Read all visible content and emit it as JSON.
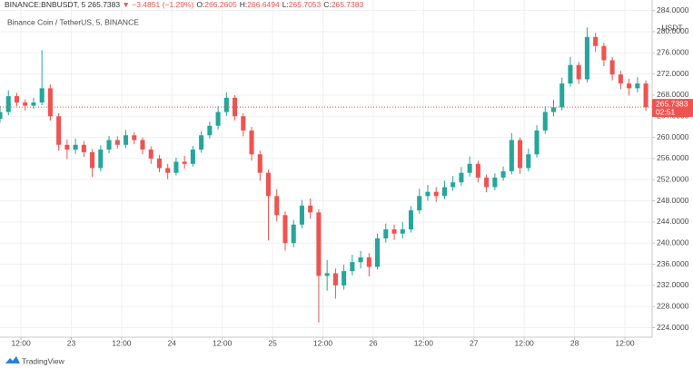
{
  "chart_data": {
    "type": "candlestick",
    "symbol": "BINANCE:BNBUSDT, 5",
    "change": "▼ −3.4851 (−1.29%)",
    "ohlc": [
      {
        "label": "O:",
        "value": "266.2605"
      },
      {
        "label": "H:",
        "value": "266.6494"
      },
      {
        "label": "L:",
        "value": "265.7053"
      },
      {
        "label": "C:",
        "value": "265.7383"
      }
    ],
    "subtitle": "Binance Coin / TetherUS, 5, BINANCE",
    "y_unit": "USDT",
    "last_price": 265.7383,
    "countdown": "02:51",
    "brand": "TradingView",
    "up_color": "#26a69a",
    "down_color": "#ef5350",
    "grid": true,
    "x": [
      7,
      9,
      11,
      13,
      15,
      17,
      19,
      21,
      23,
      25,
      27,
      29,
      31,
      33,
      35,
      37,
      39,
      41,
      43,
      45,
      47,
      49,
      51,
      53,
      55,
      57,
      59,
      61,
      63,
      65,
      67,
      69,
      71,
      73,
      75,
      77,
      79,
      81,
      83,
      85,
      87,
      89,
      91,
      93,
      95,
      97,
      99,
      101,
      103,
      105,
      107,
      109,
      111,
      113,
      115,
      117,
      119,
      121,
      123,
      125,
      127,
      129,
      131,
      133,
      135,
      137,
      139,
      141,
      143,
      145,
      147,
      149,
      151,
      153,
      155,
      157,
      159,
      161
    ],
    "open": [
      263.5,
      264.8,
      267.8,
      266.6,
      266,
      266.6,
      269.3,
      264,
      258.6,
      257.7,
      258.6,
      257.2,
      254.2,
      257.7,
      259.5,
      258.6,
      260.4,
      259.5,
      257.7,
      256,
      254.2,
      253.3,
      255.4,
      255,
      257.7,
      260.4,
      262.2,
      264.8,
      267.5,
      264,
      261.3,
      256.8,
      253.3,
      248.9,
      245.3,
      240,
      243.5,
      247.1,
      245.8,
      233.8,
      234.3,
      232,
      234.7,
      236.4,
      237.3,
      235.5,
      240.9,
      242.6,
      241.8,
      242.6,
      246.2,
      248.9,
      249.7,
      248.9,
      250.6,
      251.5,
      253.3,
      255,
      252.4,
      250.6,
      252.4,
      253.6,
      259.5,
      254.2,
      256.8,
      261.3,
      264.8,
      265.7,
      270.2,
      273.7,
      271,
      279,
      277.3,
      274.6,
      271.9,
      270.2,
      269.3,
      270.2
    ],
    "high": [
      266,
      268.9,
      268.4,
      267.2,
      267.5,
      276.5,
      270,
      264.6,
      259.6,
      259.8,
      259.3,
      257.8,
      258.5,
      260.3,
      260.2,
      261.4,
      261,
      260,
      258.3,
      256.7,
      255,
      256.2,
      256.5,
      258.4,
      261.2,
      263,
      265.9,
      268.5,
      268,
      264.6,
      262,
      257.5,
      253.9,
      250.2,
      246,
      244.4,
      248.2,
      248.5,
      246.4,
      236.8,
      235.2,
      235.9,
      237.8,
      238.5,
      238.1,
      241.8,
      243.7,
      243.5,
      244,
      247,
      250.3,
      251,
      250.6,
      251.8,
      252.7,
      254.4,
      256.4,
      255.6,
      253,
      253.2,
      254.5,
      260.8,
      260,
      257.9,
      262.3,
      265.9,
      267.1,
      271.3,
      275.2,
      274.3,
      280.8,
      279.8,
      277.9,
      275.2,
      272.6,
      271.1,
      271.4,
      270.8
    ],
    "low": [
      262.8,
      264.2,
      265.9,
      265.1,
      265.4,
      266.1,
      263.2,
      257.5,
      255.9,
      256.9,
      256.3,
      252.5,
      253.6,
      257,
      257.9,
      258,
      258.7,
      256.8,
      255,
      253.4,
      252.1,
      252.8,
      254.1,
      254.5,
      257.1,
      259.8,
      261.5,
      264.1,
      263.2,
      260.2,
      255.6,
      251.8,
      240.5,
      244.1,
      238.6,
      239.2,
      242.8,
      244.6,
      225,
      231,
      229.5,
      231.2,
      233.9,
      235.2,
      233.7,
      235,
      240.1,
      240.6,
      240.9,
      242,
      245.6,
      248,
      247.8,
      248.3,
      249.9,
      250.8,
      252.6,
      251.5,
      249.6,
      250,
      251.8,
      253,
      253.1,
      253.6,
      256.2,
      260.7,
      264,
      265.1,
      269.6,
      270.1,
      270.4,
      276.2,
      273.5,
      270.8,
      269.1,
      267.9,
      268.5,
      265
    ],
    "close": [
      264.8,
      267.8,
      266.6,
      266,
      266.6,
      269.3,
      264,
      258.6,
      257.7,
      258.6,
      257.2,
      254.2,
      257.7,
      259.5,
      258.6,
      260.4,
      259.5,
      257.7,
      256,
      254.2,
      253.3,
      255.4,
      255,
      257.7,
      260.4,
      262.2,
      264.8,
      267.5,
      264,
      261.3,
      256.8,
      253.3,
      248.9,
      245.3,
      240,
      243.5,
      247.1,
      245.8,
      233.8,
      234.3,
      232,
      234.7,
      236.4,
      237.3,
      235.5,
      240.9,
      242.6,
      241.8,
      242.6,
      246.2,
      248.9,
      249.7,
      248.9,
      250.6,
      251.5,
      253.3,
      255,
      252.4,
      250.6,
      252.4,
      253.6,
      259.5,
      254.2,
      256.8,
      261.3,
      264.8,
      265.7,
      270.2,
      273.7,
      271,
      279,
      277.3,
      274.6,
      271.9,
      270.2,
      269.3,
      270.2,
      265.7
    ],
    "xlim": [
      7,
      162.5
    ],
    "xticks": [
      {
        "value": 12,
        "label": "12:00"
      },
      {
        "value": 24,
        "label": "23"
      },
      {
        "value": 36,
        "label": "12:00"
      },
      {
        "value": 48,
        "label": "24"
      },
      {
        "value": 60,
        "label": "12:00"
      },
      {
        "value": 72,
        "label": "25"
      },
      {
        "value": 84,
        "label": "12:00"
      },
      {
        "value": 96,
        "label": "26"
      },
      {
        "value": 108,
        "label": "12:00"
      },
      {
        "value": 120,
        "label": "27"
      },
      {
        "value": 132,
        "label": "12:00"
      },
      {
        "value": 144,
        "label": "28"
      },
      {
        "value": 156,
        "label": "12:00"
      }
    ],
    "ylim": [
      222.2,
      286
    ],
    "yticks": [
      {
        "value": 224,
        "label": "224.0000"
      },
      {
        "value": 228,
        "label": "228.0000"
      },
      {
        "value": 232,
        "label": "232.0000"
      },
      {
        "value": 236,
        "label": "236.0000"
      },
      {
        "value": 240,
        "label": "240.0000"
      },
      {
        "value": 244,
        "label": "244.0000"
      },
      {
        "value": 248,
        "label": "248.0000"
      },
      {
        "value": 252,
        "label": "252.0000"
      },
      {
        "value": 256,
        "label": "256.0000"
      },
      {
        "value": 260,
        "label": "260.0000"
      },
      {
        "value": 264,
        "label": "264.0000"
      },
      {
        "value": 268,
        "label": "268.0000"
      },
      {
        "value": 272,
        "label": "272.0000"
      },
      {
        "value": 276,
        "label": "276.0000"
      },
      {
        "value": 280,
        "label": "280.0000"
      },
      {
        "value": 284,
        "label": "284.0000"
      }
    ]
  }
}
